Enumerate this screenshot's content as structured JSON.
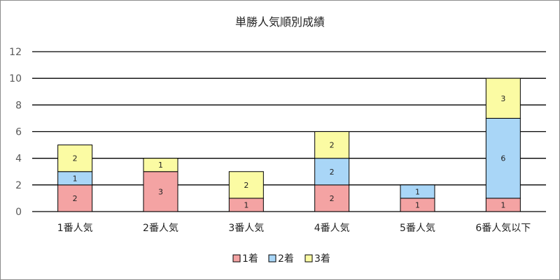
{
  "chart_data": {
    "type": "bar",
    "stacked": true,
    "title": "単勝人気順別成績",
    "categories": [
      "1番人気",
      "2番人気",
      "3番人気",
      "4番人気",
      "5番人気",
      "6番人気以下"
    ],
    "series": [
      {
        "name": "1着",
        "color": "#f4a3a3",
        "values": [
          2,
          3,
          1,
          2,
          1,
          1
        ]
      },
      {
        "name": "2着",
        "color": "#a9d6f7",
        "values": [
          1,
          0,
          0,
          2,
          1,
          6
        ]
      },
      {
        "name": "3着",
        "color": "#fbfba3",
        "values": [
          2,
          1,
          2,
          2,
          0,
          3
        ]
      }
    ],
    "ylim": [
      0,
      12
    ],
    "yticks": [
      0,
      2,
      4,
      6,
      8,
      10,
      12
    ],
    "grid": true,
    "legend_position": "bottom",
    "xlabel": "",
    "ylabel": ""
  }
}
